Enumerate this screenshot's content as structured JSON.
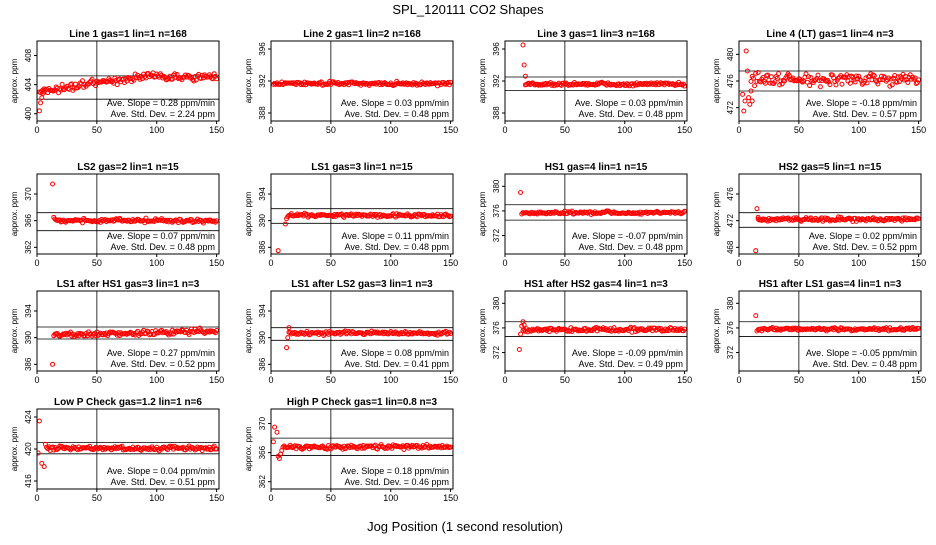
{
  "figure": {
    "title": "SPL_120111  CO2 Shapes",
    "xlabel": "Jog Position (1 second resolution)"
  },
  "colors": {
    "points": "#ff0000",
    "axis": "#000000",
    "background": "#ffffff"
  },
  "chart_data": [
    {
      "type": "scatter",
      "title": "Line 1 gas=1 lin=1 n=168",
      "ylabel": "approx. ppm",
      "xlim": [
        0,
        152
      ],
      "ylim": [
        399,
        410
      ],
      "yticks": [
        400,
        404,
        408
      ],
      "xticks": [
        0,
        50,
        100,
        150
      ],
      "vline": 50,
      "hlines": [
        402.0,
        405.2
      ],
      "slope": "Ave. Slope =  0.28  ppm/min",
      "stddev": "Ave. Std. Dev. =  2.24  ppm",
      "points": {
        "x_start": 2,
        "x_end": 150,
        "step": 1,
        "base": 403.2,
        "noise": 0.25,
        "early": [
          [
            2,
            400.4
          ],
          [
            3,
            401.5
          ],
          [
            4,
            402.2
          ],
          [
            5,
            402.8
          ],
          [
            6,
            403.0
          ]
        ],
        "ramp": [
          [
            20,
            403.3
          ],
          [
            40,
            404.0
          ],
          [
            60,
            404.5
          ],
          [
            80,
            404.9
          ],
          [
            95,
            405.3
          ],
          [
            110,
            404.9
          ],
          [
            150,
            405.0
          ]
        ]
      }
    },
    {
      "type": "scatter",
      "title": "Line 2 gas=1 lin=2 n=168",
      "ylabel": "approx. ppm",
      "xlim": [
        0,
        152
      ],
      "ylim": [
        387,
        397
      ],
      "yticks": [
        388,
        392,
        396
      ],
      "xticks": [
        0,
        50,
        100,
        150
      ],
      "vline": 50,
      "hlines": [
        391.7,
        391.7
      ],
      "slope": "Ave. Slope =  0.03  ppm/min",
      "stddev": "Ave. Std. Dev. =  0.48  ppm",
      "points": {
        "x_start": 2,
        "x_end": 150,
        "step": 1,
        "base": 391.7,
        "noise": 0.12,
        "early": []
      }
    },
    {
      "type": "scatter",
      "title": "Line 3 gas=1 lin=3 n=168",
      "ylabel": "approx. ppm",
      "xlim": [
        0,
        152
      ],
      "ylim": [
        387,
        397
      ],
      "yticks": [
        388,
        392,
        396
      ],
      "xticks": [
        0,
        50,
        100,
        150
      ],
      "vline": 50,
      "hlines": [
        392.5,
        390.8
      ],
      "slope": "Ave. Slope =  0.03  ppm/min",
      "stddev": "Ave. Std. Dev. =  0.48  ppm",
      "points": {
        "x_start": 17,
        "x_end": 150,
        "step": 1,
        "base": 391.6,
        "noise": 0.1,
        "early": [
          [
            15,
            396.5
          ],
          [
            16,
            394.0
          ],
          [
            17,
            392.6
          ]
        ]
      }
    },
    {
      "type": "scatter",
      "title": "Line 4 (LT) gas=1 lin=4 n=3",
      "ylabel": "approx. ppm",
      "xlim": [
        0,
        152
      ],
      "ylim": [
        470,
        482
      ],
      "yticks": [
        472,
        476,
        480
      ],
      "xticks": [
        0,
        50,
        100,
        150
      ],
      "vline": 50,
      "hlines": [
        477.5,
        474.5
      ],
      "slope": "Ave. Slope = -0.18  ppm/min",
      "stddev": "Ave. Std. Dev. =  0.57  ppm",
      "points": {
        "x_start": 10,
        "x_end": 150,
        "step": 1,
        "base": 476.2,
        "noise": 0.45,
        "early": [
          [
            3,
            474.0
          ],
          [
            4,
            471.5
          ],
          [
            5,
            473.0
          ],
          [
            6,
            480.5
          ],
          [
            7,
            477.5
          ],
          [
            8,
            473.5
          ],
          [
            9,
            472.5
          ],
          [
            10,
            474.5
          ],
          [
            11,
            473.0
          ]
        ]
      }
    },
    {
      "type": "scatter",
      "title": "LS2 gas=2 lin=1 n=15",
      "ylabel": "approx. ppm",
      "xlim": [
        0,
        152
      ],
      "ylim": [
        361,
        373
      ],
      "yticks": [
        362,
        366,
        370
      ],
      "xticks": [
        0,
        50,
        100,
        150
      ],
      "vline": 50,
      "hlines": [
        367.2,
        364.5
      ],
      "slope": "Ave. Slope =  0.07  ppm/min",
      "stddev": "Ave. Std. Dev. =  0.48  ppm",
      "points": {
        "x_start": 15,
        "x_end": 150,
        "step": 1,
        "base": 366.0,
        "noise": 0.14,
        "early": [
          [
            13,
            371.5
          ],
          [
            14,
            366.5
          ]
        ]
      }
    },
    {
      "type": "scatter",
      "title": "LS1 gas=3 lin=1 n=15",
      "ylabel": "approx. ppm",
      "xlim": [
        0,
        152
      ],
      "ylim": [
        385,
        397
      ],
      "yticks": [
        386,
        390,
        394
      ],
      "xticks": [
        0,
        50,
        100,
        150
      ],
      "vline": 50,
      "hlines": [
        391.8,
        389.6
      ],
      "slope": "Ave. Slope =  0.11  ppm/min",
      "stddev": "Ave. Std. Dev. =  0.48  ppm",
      "points": {
        "x_start": 15,
        "x_end": 150,
        "step": 1,
        "base": 390.8,
        "noise": 0.13,
        "early": [
          [
            6,
            385.5
          ],
          [
            12,
            389.5
          ],
          [
            13,
            390.3
          ],
          [
            14,
            390.6
          ]
        ]
      }
    },
    {
      "type": "scatter",
      "title": "HS1 gas=4 lin=1 n=15",
      "ylabel": "approx. ppm",
      "xlim": [
        0,
        152
      ],
      "ylim": [
        369,
        382
      ],
      "yticks": [
        372,
        376,
        380
      ],
      "xticks": [
        0,
        50,
        100,
        150
      ],
      "vline": 50,
      "hlines": [
        377.0,
        374.5
      ],
      "slope": "Ave. Slope = -0.07  ppm/min",
      "stddev": "Ave. Std. Dev. =  0.48  ppm",
      "points": {
        "x_start": 15,
        "x_end": 150,
        "step": 1,
        "base": 375.7,
        "noise": 0.12,
        "early": [
          [
            13,
            379.0
          ],
          [
            14,
            375.5
          ]
        ]
      }
    },
    {
      "type": "scatter",
      "title": "HS2 gas=5 lin=1 n=15",
      "ylabel": "approx. ppm",
      "xlim": [
        0,
        152
      ],
      "ylim": [
        467,
        479
      ],
      "yticks": [
        468,
        472,
        476
      ],
      "xticks": [
        0,
        50,
        100,
        150
      ],
      "vline": 50,
      "hlines": [
        473.2,
        471.0
      ],
      "slope": "Ave. Slope =  0.02  ppm/min",
      "stddev": "Ave. Std. Dev. =  0.52  ppm",
      "points": {
        "x_start": 16,
        "x_end": 150,
        "step": 1,
        "base": 472.2,
        "noise": 0.14,
        "early": [
          [
            14,
            467.5
          ],
          [
            15,
            473.8
          ],
          [
            16,
            472.5
          ]
        ]
      }
    },
    {
      "type": "scatter",
      "title": "LS1 after HS1 gas=3 lin=1 n=3",
      "ylabel": "approx. ppm",
      "xlim": [
        0,
        152
      ],
      "ylim": [
        385,
        397
      ],
      "yticks": [
        386,
        390,
        394
      ],
      "xticks": [
        0,
        50,
        100,
        150
      ],
      "vline": 50,
      "hlines": [
        391.6,
        389.8
      ],
      "slope": "Ave. Slope =  0.27  ppm/min",
      "stddev": "Ave. Std. Dev. =  0.52  ppm",
      "points": {
        "x_start": 15,
        "x_end": 150,
        "step": 1,
        "base": 390.6,
        "noise": 0.2,
        "ramp": [
          [
            15,
            390.4
          ],
          [
            150,
            391.0
          ]
        ],
        "early": [
          [
            13,
            386.0
          ],
          [
            14,
            390.3
          ]
        ]
      }
    },
    {
      "type": "scatter",
      "title": "LS1 after LS2 gas=3 lin=1 n=3",
      "ylabel": "approx. ppm",
      "xlim": [
        0,
        152
      ],
      "ylim": [
        385,
        397
      ],
      "yticks": [
        386,
        390,
        394
      ],
      "xticks": [
        0,
        50,
        100,
        150
      ],
      "vline": 50,
      "hlines": [
        391.5,
        389.6
      ],
      "slope": "Ave. Slope =  0.08  ppm/min",
      "stddev": "Ave. Std. Dev. =  0.41  ppm",
      "points": {
        "x_start": 15,
        "x_end": 150,
        "step": 1,
        "base": 390.7,
        "noise": 0.13,
        "early": [
          [
            13,
            388.5
          ],
          [
            14,
            390.0
          ],
          [
            15,
            391.5
          ]
        ]
      }
    },
    {
      "type": "scatter",
      "title": "HS1 after HS2 gas=4 lin=1 n=3",
      "ylabel": "approx. ppm",
      "xlim": [
        0,
        152
      ],
      "ylim": [
        369,
        382
      ],
      "yticks": [
        372,
        376,
        380
      ],
      "xticks": [
        0,
        50,
        100,
        150
      ],
      "vline": 50,
      "hlines": [
        377.0,
        374.6
      ],
      "slope": "Ave. Slope = -0.09  ppm/min",
      "stddev": "Ave. Std. Dev. =  0.49  ppm",
      "points": {
        "x_start": 15,
        "x_end": 150,
        "step": 1,
        "base": 375.7,
        "noise": 0.17,
        "early": [
          [
            12,
            372.5
          ],
          [
            13,
            375.0
          ],
          [
            14,
            376.3
          ],
          [
            15,
            377.0
          ],
          [
            16,
            376.5
          ]
        ]
      }
    },
    {
      "type": "scatter",
      "title": "HS1 after LS1 gas=4 lin=1 n=3",
      "ylabel": "approx. ppm",
      "xlim": [
        0,
        152
      ],
      "ylim": [
        369,
        382
      ],
      "yticks": [
        372,
        376,
        380
      ],
      "xticks": [
        0,
        50,
        100,
        150
      ],
      "vline": 50,
      "hlines": [
        377.0,
        374.6
      ],
      "slope": "Ave. Slope = -0.05  ppm/min",
      "stddev": "Ave. Std. Dev. =  0.48  ppm",
      "points": {
        "x_start": 16,
        "x_end": 150,
        "step": 1,
        "base": 375.8,
        "noise": 0.12,
        "early": [
          [
            14,
            378.0
          ],
          [
            15,
            375.5
          ]
        ]
      }
    },
    {
      "type": "scatter",
      "title": "Low P Check gas=1.2 lin=1 n=6",
      "ylabel": "approx. ppm",
      "xlim": [
        0,
        152
      ],
      "ylim": [
        415,
        425
      ],
      "yticks": [
        416,
        420,
        424
      ],
      "xticks": [
        0,
        50,
        100,
        150
      ],
      "vline": 50,
      "hlines": [
        420.8,
        419.4
      ],
      "slope": "Ave. Slope =  0.04  ppm/min",
      "stddev": "Ave. Std. Dev. =  0.51  ppm",
      "points": {
        "x_start": 9,
        "x_end": 150,
        "step": 1,
        "base": 420.1,
        "noise": 0.14,
        "early": [
          [
            2,
            423.5
          ],
          [
            1,
            419.5
          ],
          [
            4,
            418.2
          ],
          [
            6,
            417.8
          ],
          [
            7,
            420.6
          ],
          [
            8,
            420.2
          ]
        ]
      }
    },
    {
      "type": "scatter",
      "title": "High P Check gas=1 lin=0.8 n=3",
      "ylabel": "approx. ppm",
      "xlim": [
        0,
        152
      ],
      "ylim": [
        361,
        372
      ],
      "yticks": [
        362,
        366,
        370
      ],
      "xticks": [
        0,
        50,
        100,
        150
      ],
      "vline": 50,
      "hlines": [
        368.0,
        365.6
      ],
      "slope": "Ave. Slope =  0.18  ppm/min",
      "stddev": "Ave. Std. Dev. =  0.46  ppm",
      "points": {
        "x_start": 10,
        "x_end": 150,
        "step": 1,
        "base": 366.8,
        "noise": 0.15,
        "early": [
          [
            2,
            367.5
          ],
          [
            3,
            369.5
          ],
          [
            5,
            368.8
          ],
          [
            6,
            365.5
          ],
          [
            7,
            365.2
          ],
          [
            8,
            365.8
          ],
          [
            9,
            366.3
          ]
        ]
      }
    }
  ]
}
